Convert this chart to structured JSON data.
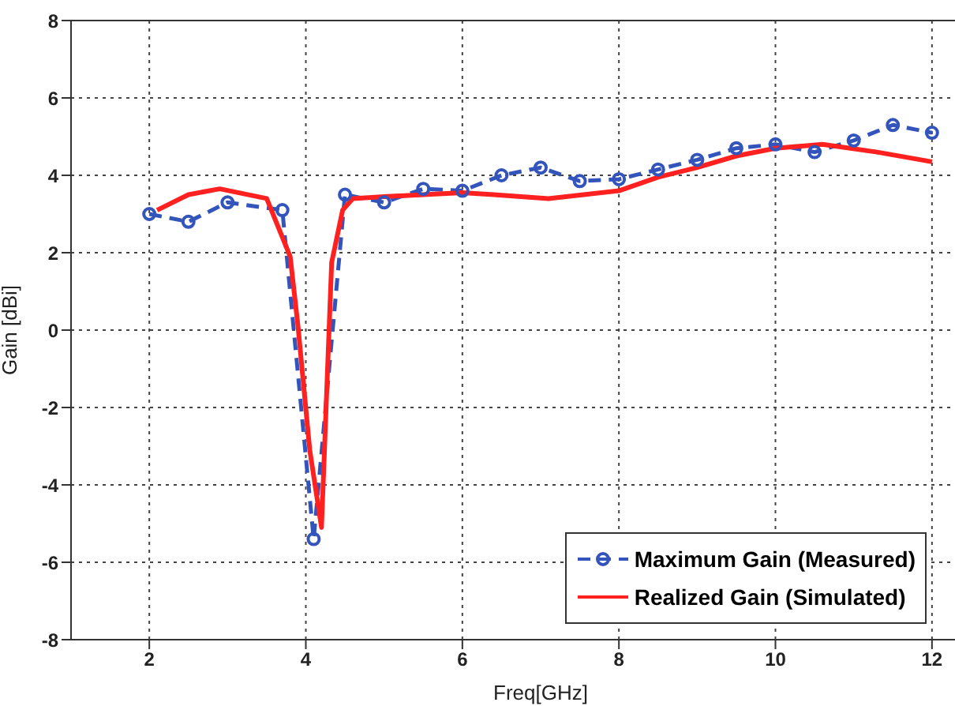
{
  "chart_data": {
    "type": "line",
    "xlabel": "Freq[GHz]",
    "ylabel": "Gain [dBi]",
    "xlim": [
      1,
      13
    ],
    "ylim": [
      -8,
      8
    ],
    "xticks": [
      2,
      4,
      6,
      8,
      10,
      12
    ],
    "yticks": [
      -8,
      -6,
      -4,
      -2,
      0,
      2,
      4,
      6,
      8
    ],
    "grid": true,
    "legend": "bottom right",
    "series": [
      {
        "name": "Maximum Gain (Measured)",
        "color": "#3355bb",
        "marker": "circle",
        "line_style": "dashed",
        "x": [
          2,
          2.5,
          3,
          3.7,
          4.1,
          4.5,
          5,
          5.5,
          6,
          6.5,
          7,
          7.5,
          8,
          8.5,
          9,
          9.5,
          10,
          10.5,
          11,
          11.5,
          12
        ],
        "values": [
          3.0,
          2.8,
          3.3,
          3.1,
          -5.4,
          3.5,
          3.3,
          3.65,
          3.6,
          4.0,
          4.2,
          3.85,
          3.9,
          4.15,
          4.4,
          4.7,
          4.8,
          4.6,
          4.9,
          5.3,
          5.1
        ]
      },
      {
        "name": "Realized Gain (Simulated)",
        "color": "#ff2020",
        "marker": "none",
        "line_style": "solid",
        "x": [
          2.1,
          2.5,
          2.9,
          3.5,
          3.8,
          3.9,
          4.05,
          4.2,
          4.33,
          4.47,
          4.6,
          5,
          5.5,
          6,
          6.4,
          7.1,
          8,
          8.5,
          9,
          9.5,
          10,
          10.6,
          11.3,
          12
        ],
        "values": [
          3.1,
          3.5,
          3.65,
          3.4,
          1.9,
          0.1,
          -3.1,
          -5.1,
          1.75,
          3.1,
          3.4,
          3.45,
          3.5,
          3.55,
          3.5,
          3.4,
          3.6,
          3.95,
          4.2,
          4.5,
          4.7,
          4.8,
          4.6,
          4.35
        ]
      }
    ]
  }
}
